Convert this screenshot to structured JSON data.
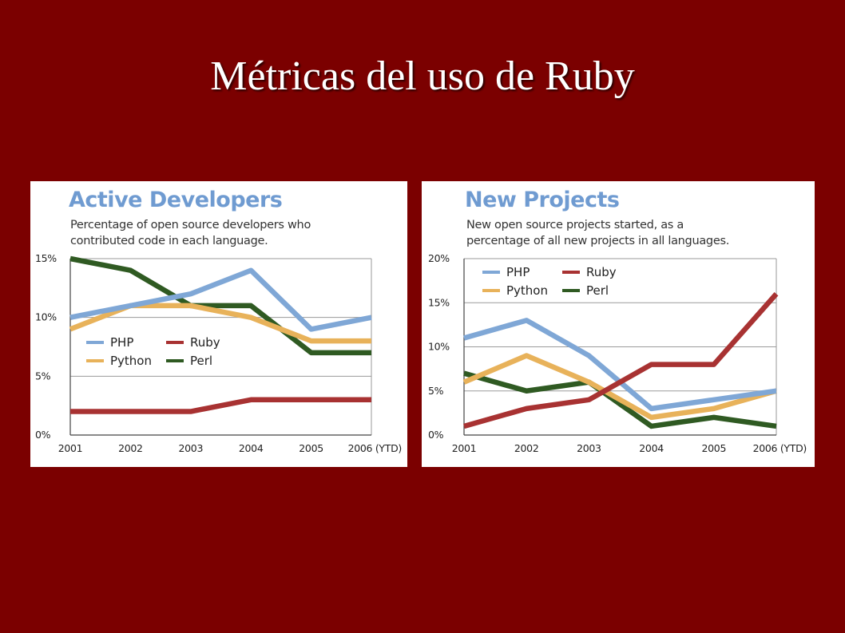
{
  "slide": {
    "title": "Métricas del uso de Ruby"
  },
  "chart_data": [
    {
      "type": "line",
      "title": "Active Developers",
      "subtitle_lines": [
        "Percentage of open source developers who",
        "contributed code in each language."
      ],
      "x": [
        "2001",
        "2002",
        "2003",
        "2004",
        "2005",
        "2006 (YTD)"
      ],
      "yticks": [
        "0%",
        "5%",
        "10%",
        "15%"
      ],
      "ylim": [
        0,
        15
      ],
      "grid": true,
      "legend_position": "center-left",
      "series": [
        {
          "name": "PHP",
          "color": "#7fa7d6",
          "values": [
            10,
            11,
            12,
            14,
            9,
            10
          ]
        },
        {
          "name": "Python",
          "color": "#e8b25a",
          "values": [
            9,
            11,
            11,
            10,
            8,
            8
          ]
        },
        {
          "name": "Ruby",
          "color": "#a83232",
          "values": [
            2,
            2,
            2,
            3,
            3,
            3
          ]
        },
        {
          "name": "Perl",
          "color": "#2f5a22",
          "values": [
            15,
            14,
            11,
            11,
            7,
            7
          ]
        }
      ]
    },
    {
      "type": "line",
      "title": "New Projects",
      "subtitle_lines": [
        "New open source projects started, as a",
        "percentage of all new projects in all languages."
      ],
      "x": [
        "2001",
        "2002",
        "2003",
        "2004",
        "2005",
        "2006 (YTD)"
      ],
      "yticks": [
        "0%",
        "5%",
        "10%",
        "15%",
        "20%"
      ],
      "ylim": [
        0,
        20
      ],
      "grid": true,
      "legend_position": "top-left",
      "series": [
        {
          "name": "PHP",
          "color": "#7fa7d6",
          "values": [
            11,
            13,
            9,
            3,
            4,
            5
          ]
        },
        {
          "name": "Python",
          "color": "#e8b25a",
          "values": [
            6,
            9,
            6,
            2,
            3,
            5
          ]
        },
        {
          "name": "Ruby",
          "color": "#a83232",
          "values": [
            1,
            3,
            4,
            8,
            8,
            16
          ]
        },
        {
          "name": "Perl",
          "color": "#2f5a22",
          "values": [
            7,
            5,
            6,
            1,
            2,
            1
          ]
        }
      ]
    }
  ]
}
